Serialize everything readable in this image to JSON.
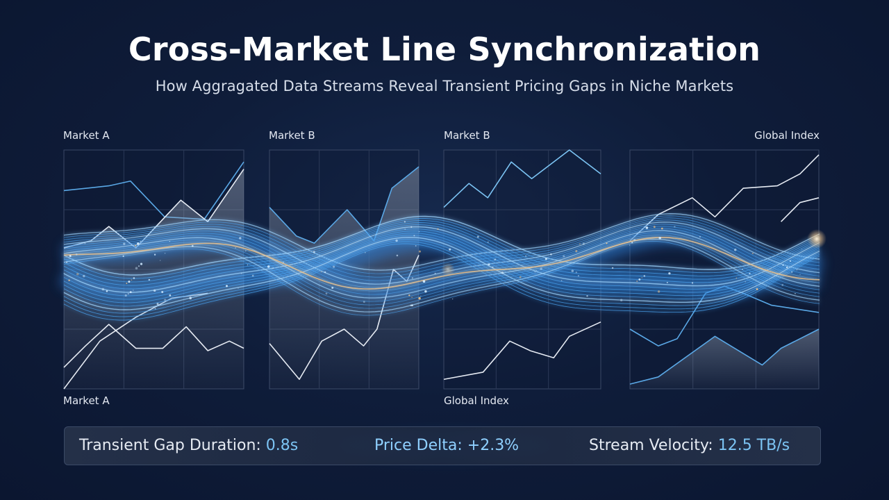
{
  "header": {
    "title": "Cross-Market Line Synchronization",
    "subtitle": "How Aggragated Data Streams Reveal Transient Pricing Gaps in Niche Markets"
  },
  "panels": [
    {
      "label_top": "Market A",
      "label_bottom": "Market A",
      "lines": [
        {
          "color": "#5aa8e6",
          "points": [
            [
              0,
              0.17
            ],
            [
              0.25,
              0.15
            ],
            [
              0.37,
              0.13
            ],
            [
              0.56,
              0.28
            ],
            [
              0.78,
              0.29
            ],
            [
              1.0,
              0.05
            ]
          ]
        },
        {
          "color": "#e6ebf3",
          "points": [
            [
              0,
              0.41
            ],
            [
              0.15,
              0.38
            ],
            [
              0.25,
              0.32
            ],
            [
              0.4,
              0.41
            ],
            [
              0.65,
              0.21
            ],
            [
              0.8,
              0.3
            ],
            [
              1.0,
              0.08
            ]
          ],
          "fill": true
        },
        {
          "color": "#e6ebf3",
          "points": [
            [
              0,
              0.91
            ],
            [
              0.12,
              0.82
            ],
            [
              0.25,
              0.73
            ],
            [
              0.4,
              0.83
            ],
            [
              0.55,
              0.83
            ],
            [
              0.68,
              0.74
            ],
            [
              0.8,
              0.84
            ],
            [
              0.92,
              0.8
            ],
            [
              1.0,
              0.83
            ]
          ]
        },
        {
          "color": "#e6ebf3",
          "points": [
            [
              0,
              1.0
            ],
            [
              0.2,
              0.8
            ],
            [
              0.4,
              0.7
            ],
            [
              0.6,
              0.62
            ],
            [
              0.8,
              0.6
            ]
          ]
        }
      ]
    },
    {
      "label_top": "Market B",
      "label_bottom": "",
      "lines": [
        {
          "color": "#5aa8e6",
          "points": [
            [
              0,
              0.24
            ],
            [
              0.18,
              0.36
            ],
            [
              0.3,
              0.39
            ],
            [
              0.52,
              0.25
            ],
            [
              0.7,
              0.38
            ],
            [
              0.82,
              0.16
            ],
            [
              1.0,
              0.07
            ]
          ],
          "fill": true
        },
        {
          "color": "#e6ebf3",
          "points": [
            [
              0,
              0.81
            ],
            [
              0.2,
              0.96
            ],
            [
              0.35,
              0.8
            ],
            [
              0.5,
              0.75
            ],
            [
              0.63,
              0.82
            ],
            [
              0.72,
              0.75
            ],
            [
              0.83,
              0.5
            ],
            [
              0.92,
              0.55
            ],
            [
              1.0,
              0.44
            ]
          ]
        }
      ]
    },
    {
      "label_top": "Market B",
      "label_bottom": "Global Index",
      "lines": [
        {
          "color": "#7cc4f4",
          "points": [
            [
              0,
              0.24
            ],
            [
              0.16,
              0.14
            ],
            [
              0.28,
              0.2
            ],
            [
              0.43,
              0.05
            ],
            [
              0.56,
              0.12
            ],
            [
              0.8,
              0.0
            ],
            [
              1.0,
              0.1
            ]
          ]
        },
        {
          "color": "#e6ebf3",
          "points": [
            [
              0,
              0.96
            ],
            [
              0.25,
              0.93
            ],
            [
              0.42,
              0.8
            ],
            [
              0.55,
              0.84
            ],
            [
              0.7,
              0.87
            ],
            [
              0.8,
              0.78
            ],
            [
              1.0,
              0.72
            ]
          ]
        }
      ]
    },
    {
      "label_top": "Global Index",
      "label_bottom": "",
      "lines": [
        {
          "color": "#e6ebf3",
          "points": [
            [
              0,
              0.38
            ],
            [
              0.15,
              0.27
            ],
            [
              0.33,
              0.2
            ],
            [
              0.45,
              0.28
            ],
            [
              0.6,
              0.16
            ],
            [
              0.78,
              0.15
            ],
            [
              0.9,
              0.1
            ],
            [
              1.0,
              0.02
            ]
          ]
        },
        {
          "color": "#5aa8e6",
          "points": [
            [
              0,
              0.75
            ],
            [
              0.15,
              0.82
            ],
            [
              0.25,
              0.79
            ],
            [
              0.4,
              0.6
            ],
            [
              0.5,
              0.57
            ],
            [
              0.6,
              0.6
            ],
            [
              0.75,
              0.65
            ],
            [
              1.0,
              0.68
            ]
          ]
        },
        {
          "color": "#5aa8e6",
          "points": [
            [
              0,
              0.98
            ],
            [
              0.15,
              0.95
            ],
            [
              0.45,
              0.78
            ],
            [
              0.7,
              0.9
            ],
            [
              0.8,
              0.83
            ],
            [
              1.0,
              0.75
            ]
          ],
          "fill": true
        },
        {
          "color": "#e6ebf3",
          "points": [
            [
              0.8,
              0.3
            ],
            [
              0.9,
              0.22
            ],
            [
              1.0,
              0.2
            ]
          ]
        }
      ]
    }
  ],
  "stats": {
    "gap_label": "Transient Gap Duration: ",
    "gap_value": "0.8s",
    "delta_label": "Price Delta: ",
    "delta_value": "+2.3%",
    "velocity_label": "Stream Velocity: ",
    "velocity_value": "12.5 TB/s"
  },
  "colors": {
    "background": "#0f1d3a",
    "stream_blue": "#4aa3f0",
    "stream_glow": "#9fd6ff",
    "stream_gold": "#f2c48a"
  }
}
